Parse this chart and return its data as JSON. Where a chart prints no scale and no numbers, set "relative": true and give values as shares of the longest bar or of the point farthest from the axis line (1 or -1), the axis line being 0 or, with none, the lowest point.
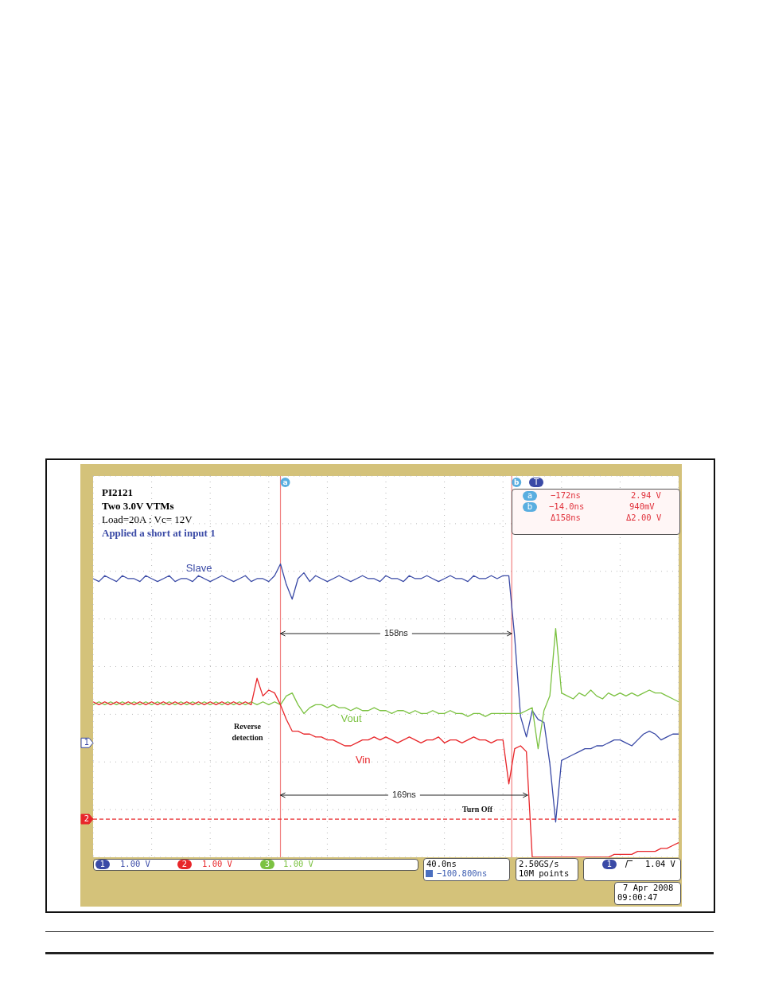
{
  "chart_data": {
    "type": "line",
    "relative": true,
    "grid": true,
    "categories": [
      null,
      null,
      null,
      null,
      null,
      null,
      null,
      null,
      null,
      null,
      null,
      null,
      null,
      null,
      null,
      null,
      null,
      null,
      null,
      null,
      null,
      null,
      null,
      null,
      null,
      null,
      null,
      null,
      null,
      null,
      null,
      null,
      null,
      null,
      null,
      null,
      null,
      null,
      null,
      null,
      null,
      null,
      null,
      null,
      null,
      null,
      null,
      null,
      null,
      null,
      null,
      null,
      null,
      null,
      null,
      null,
      null,
      null,
      null,
      null,
      null,
      null,
      null,
      null,
      null,
      null,
      null,
      null,
      null,
      null,
      null,
      null,
      null,
      null,
      null,
      null,
      null,
      null,
      null,
      null,
      null,
      null,
      null,
      null,
      null,
      null,
      null,
      null,
      null,
      null,
      null,
      null,
      null,
      null,
      null,
      null,
      null,
      null,
      null,
      null,
      null
    ],
    "series": [
      {
        "name": "Slave",
        "color": "#3a4aa6",
        "values": [
          0.95,
          0.94,
          0.96,
          0.95,
          0.94,
          0.96,
          0.95,
          0.95,
          0.94,
          0.96,
          0.95,
          0.94,
          0.95,
          0.96,
          0.94,
          0.95,
          0.95,
          0.94,
          0.96,
          0.95,
          0.94,
          0.95,
          0.96,
          0.95,
          0.94,
          0.95,
          0.96,
          0.94,
          0.95,
          0.95,
          0.94,
          0.96,
          1.0,
          0.93,
          0.88,
          0.95,
          0.97,
          0.94,
          0.96,
          0.95,
          0.94,
          0.95,
          0.96,
          0.95,
          0.94,
          0.95,
          0.96,
          0.95,
          0.95,
          0.94,
          0.96,
          0.95,
          0.95,
          0.94,
          0.96,
          0.95,
          0.95,
          0.96,
          0.95,
          0.94,
          0.95,
          0.96,
          0.95,
          0.95,
          0.94,
          0.96,
          0.95,
          0.95,
          0.96,
          0.95,
          0.96,
          0.96,
          0.75,
          0.48,
          0.41,
          0.5,
          0.47,
          0.46,
          0.32,
          0.12,
          0.33,
          0.34,
          0.35,
          0.36,
          0.37,
          0.37,
          0.38,
          0.38,
          0.39,
          0.4,
          0.4,
          0.39,
          0.38,
          0.4,
          0.42,
          0.43,
          0.42,
          0.4,
          0.41,
          0.42,
          0.42
        ]
      },
      {
        "name": "Vout",
        "color": "#7cc242",
        "values": [
          0.52,
          0.53,
          0.52,
          0.53,
          0.52,
          0.53,
          0.52,
          0.53,
          0.52,
          0.53,
          0.52,
          0.53,
          0.52,
          0.53,
          0.52,
          0.53,
          0.52,
          0.53,
          0.52,
          0.53,
          0.52,
          0.53,
          0.52,
          0.53,
          0.52,
          0.53,
          0.52,
          0.53,
          0.52,
          0.53,
          0.52,
          0.53,
          0.52,
          0.55,
          0.56,
          0.52,
          0.49,
          0.51,
          0.52,
          0.52,
          0.51,
          0.52,
          0.51,
          0.51,
          0.5,
          0.51,
          0.5,
          0.5,
          0.51,
          0.5,
          0.5,
          0.49,
          0.5,
          0.5,
          0.49,
          0.5,
          0.49,
          0.49,
          0.5,
          0.49,
          0.49,
          0.5,
          0.49,
          0.49,
          0.48,
          0.49,
          0.49,
          0.48,
          0.49,
          0.49,
          0.49,
          0.49,
          0.49,
          0.49,
          0.5,
          0.51,
          0.37,
          0.5,
          0.55,
          0.78,
          0.56,
          0.55,
          0.54,
          0.56,
          0.55,
          0.57,
          0.55,
          0.54,
          0.56,
          0.55,
          0.56,
          0.55,
          0.56,
          0.55,
          0.56,
          0.57,
          0.56,
          0.56,
          0.55,
          0.54,
          0.53
        ]
      },
      {
        "name": "Vin",
        "color": "#e8262a",
        "values": [
          0.53,
          0.52,
          0.53,
          0.52,
          0.53,
          0.52,
          0.53,
          0.52,
          0.53,
          0.52,
          0.53,
          0.52,
          0.53,
          0.52,
          0.53,
          0.52,
          0.53,
          0.52,
          0.53,
          0.52,
          0.53,
          0.52,
          0.53,
          0.52,
          0.53,
          0.52,
          0.53,
          0.52,
          0.61,
          0.55,
          0.57,
          0.56,
          0.52,
          0.47,
          0.43,
          0.43,
          0.42,
          0.42,
          0.41,
          0.41,
          0.4,
          0.4,
          0.39,
          0.38,
          0.38,
          0.39,
          0.4,
          0.4,
          0.41,
          0.4,
          0.41,
          0.4,
          0.39,
          0.4,
          0.41,
          0.4,
          0.39,
          0.4,
          0.4,
          0.41,
          0.39,
          0.4,
          0.4,
          0.39,
          0.4,
          0.41,
          0.4,
          0.4,
          0.39,
          0.4,
          0.4,
          0.25,
          0.37,
          0.38,
          0.36,
          0,
          0,
          0,
          0,
          0,
          0,
          0,
          0,
          0,
          0,
          0,
          0,
          0,
          0,
          0.01,
          0.01,
          0.01,
          0.01,
          0.02,
          0.02,
          0.02,
          0.02,
          0.03,
          0.03,
          0.04,
          0.05
        ]
      }
    ],
    "ref_lines": [
      {
        "axis": "y",
        "value": 0.13,
        "color": "#e8262a",
        "line_style": "dashed"
      }
    ],
    "annotations": [
      "PI2121",
      "Two 3.0V VTMs",
      "Load=20A : Vc= 12V",
      "Applied a short at input 1",
      "Reverse detection",
      "158ns",
      "169ns",
      "Turn Off",
      "−172ns",
      "2.94 V",
      "−14.0ns",
      "940mV",
      "Δ158ns",
      "Δ2.00 V",
      "1.00 V",
      "1.00 V",
      "1.00 V",
      "40.0ns",
      "−100.800ns",
      "2.50GS/s",
      "10M points",
      "1.04 V",
      "7 Apr 2008",
      "09:00:47",
      "1",
      "2",
      "3",
      "a",
      "b",
      "1",
      "T",
      {
        "text": "1",
        "y": 0.39
      },
      {
        "text": "2",
        "y": 0.13
      },
      "a",
      "b"
    ]
  }
}
